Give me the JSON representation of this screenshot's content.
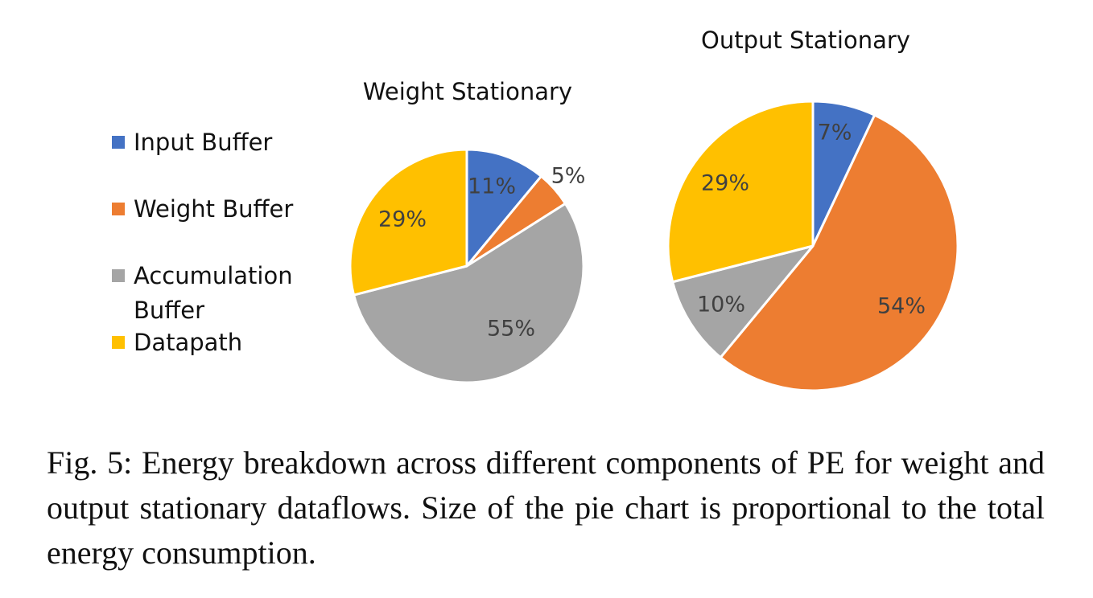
{
  "chart_data": [
    {
      "type": "pie",
      "title": "Weight Stationary",
      "categories": [
        "Input Buffer",
        "Weight Buffer",
        "Accumulation Buffer",
        "Datapath"
      ],
      "values": [
        11,
        5,
        55,
        29
      ],
      "labels": [
        "11%",
        "5%",
        "55%",
        "29%"
      ],
      "colors": [
        "#4472C4",
        "#ED7D31",
        "#A5A5A5",
        "#FFC000"
      ],
      "legend_position": "left"
    },
    {
      "type": "pie",
      "title": "Output Stationary",
      "categories": [
        "Input Buffer",
        "Weight Buffer",
        "Accumulation Buffer",
        "Datapath"
      ],
      "values": [
        7,
        54,
        10,
        29
      ],
      "labels": [
        "7%",
        "54%",
        "10%",
        "29%"
      ],
      "colors": [
        "#4472C4",
        "#ED7D31",
        "#A5A5A5",
        "#FFC000"
      ]
    }
  ],
  "legend": {
    "items": [
      {
        "label_line1": "Input Buffer",
        "label_line2": "",
        "color": "#4472C4"
      },
      {
        "label_line1": "Weight Buffer",
        "label_line2": "",
        "color": "#ED7D31"
      },
      {
        "label_line1": "Accumulation",
        "label_line2": "Buffer",
        "color": "#A5A5A5"
      },
      {
        "label_line1": "Datapath",
        "label_line2": "",
        "color": "#FFC000"
      }
    ]
  },
  "caption": "Fig. 5: Energy breakdown across different components of PE for weight and output stationary dataflows. Size of the pie chart is proportional to the total energy consumption."
}
